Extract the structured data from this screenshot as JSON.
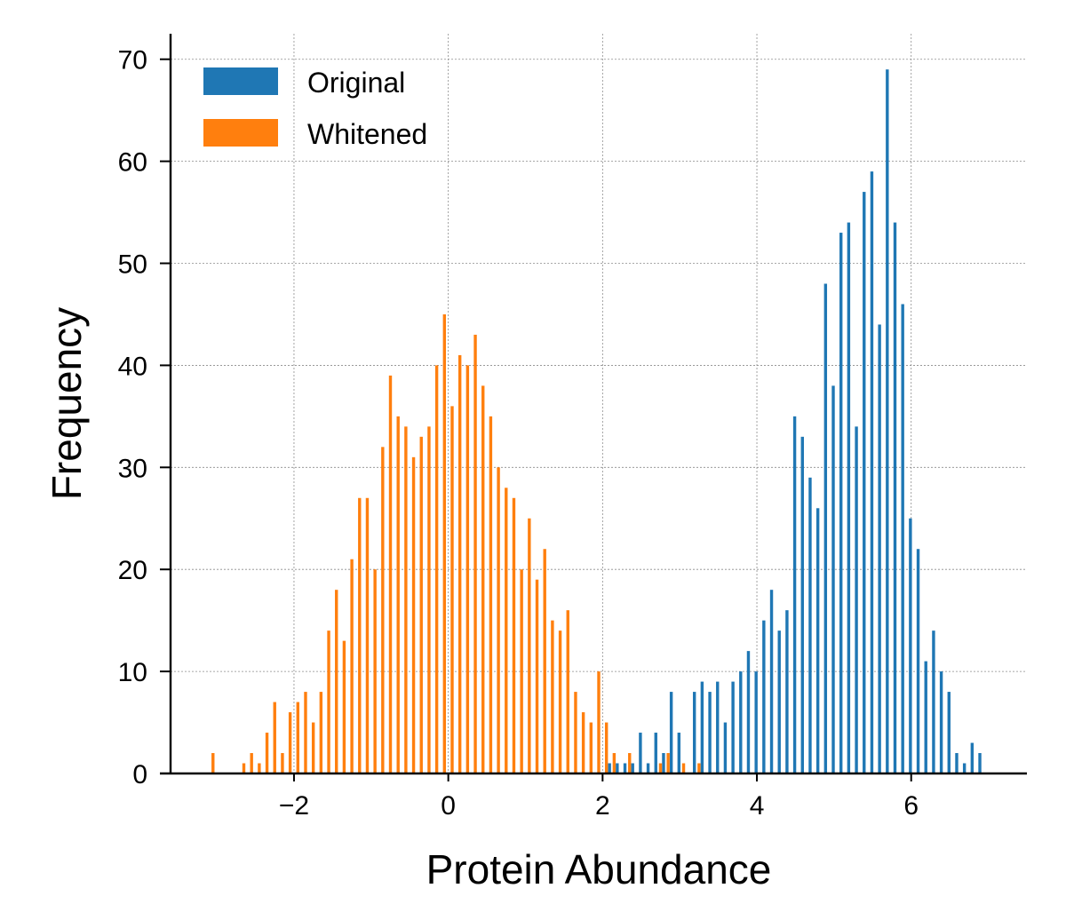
{
  "chart_data": {
    "type": "bar",
    "title": "",
    "xlabel": "Protein Abundance",
    "ylabel": "Frequency",
    "xlim": [
      -3.6,
      7.5
    ],
    "ylim": [
      0,
      72.5
    ],
    "grid": true,
    "legend_position": "top-left",
    "xticks": [
      {
        "value": -2,
        "label": "−2"
      },
      {
        "value": 0,
        "label": "0"
      },
      {
        "value": 2,
        "label": "2"
      },
      {
        "value": 4,
        "label": "4"
      },
      {
        "value": 6,
        "label": "6"
      }
    ],
    "yticks": [
      {
        "value": 0,
        "label": "0"
      },
      {
        "value": 10,
        "label": "10"
      },
      {
        "value": 20,
        "label": "20"
      },
      {
        "value": 30,
        "label": "30"
      },
      {
        "value": 40,
        "label": "40"
      },
      {
        "value": 50,
        "label": "50"
      },
      {
        "value": 60,
        "label": "60"
      },
      {
        "value": 70,
        "label": "70"
      }
    ],
    "series": [
      {
        "name": "Original",
        "color": "#1f77b4",
        "x": [
          2.09,
          2.19,
          2.29,
          2.39,
          2.49,
          2.59,
          2.69,
          2.79,
          2.89,
          2.99,
          3.09,
          3.19,
          3.29,
          3.39,
          3.49,
          3.59,
          3.69,
          3.79,
          3.89,
          3.99,
          4.09,
          4.19,
          4.29,
          4.39,
          4.49,
          4.59,
          4.69,
          4.79,
          4.89,
          4.99,
          5.09,
          5.19,
          5.29,
          5.39,
          5.49,
          5.59,
          5.69,
          5.79,
          5.89,
          5.99,
          6.09,
          6.19,
          6.29,
          6.39,
          6.49,
          6.59,
          6.69,
          6.79,
          6.89,
          6.99
        ],
        "values": [
          1,
          1,
          1,
          1,
          4,
          1,
          4,
          2,
          8,
          4,
          0,
          8,
          9,
          8,
          9,
          5,
          9,
          10,
          12,
          10,
          15,
          18,
          14,
          16,
          35,
          33,
          29,
          26,
          48,
          38,
          53,
          54,
          34,
          57,
          59,
          44,
          69,
          54,
          46,
          25,
          22,
          11,
          14,
          10,
          8,
          2,
          1,
          3,
          2,
          0
        ]
      },
      {
        "name": "Whitened",
        "color": "#ff7f0e",
        "x": [
          -3.05,
          -2.95,
          -2.85,
          -2.75,
          -2.65,
          -2.55,
          -2.45,
          -2.35,
          -2.25,
          -2.15,
          -2.05,
          -1.95,
          -1.85,
          -1.75,
          -1.65,
          -1.55,
          -1.45,
          -1.35,
          -1.25,
          -1.15,
          -1.05,
          -0.95,
          -0.85,
          -0.75,
          -0.65,
          -0.55,
          -0.45,
          -0.35,
          -0.25,
          -0.15,
          -0.05,
          0.05,
          0.15,
          0.25,
          0.35,
          0.45,
          0.55,
          0.65,
          0.75,
          0.85,
          0.95,
          1.05,
          1.15,
          1.25,
          1.35,
          1.45,
          1.55,
          1.65,
          1.75,
          1.85,
          1.95,
          2.05,
          2.15,
          2.25,
          2.35,
          2.45,
          2.55,
          2.65,
          2.75,
          2.85,
          2.95,
          3.05,
          3.15,
          3.25,
          3.35
        ],
        "values": [
          2,
          0,
          0,
          0,
          1,
          2,
          1,
          4,
          7,
          2,
          6,
          7,
          8,
          5,
          8,
          14,
          18,
          13,
          21,
          27,
          27,
          20,
          32,
          39,
          35,
          34,
          31,
          33,
          34,
          40,
          45,
          36,
          41,
          40,
          43,
          38,
          35,
          30,
          28,
          27,
          20,
          25,
          19,
          22,
          15,
          14,
          16,
          8,
          6,
          5,
          10,
          5,
          2,
          0,
          2,
          0,
          0,
          0,
          1,
          2,
          0,
          1,
          0,
          1,
          0
        ]
      }
    ]
  }
}
